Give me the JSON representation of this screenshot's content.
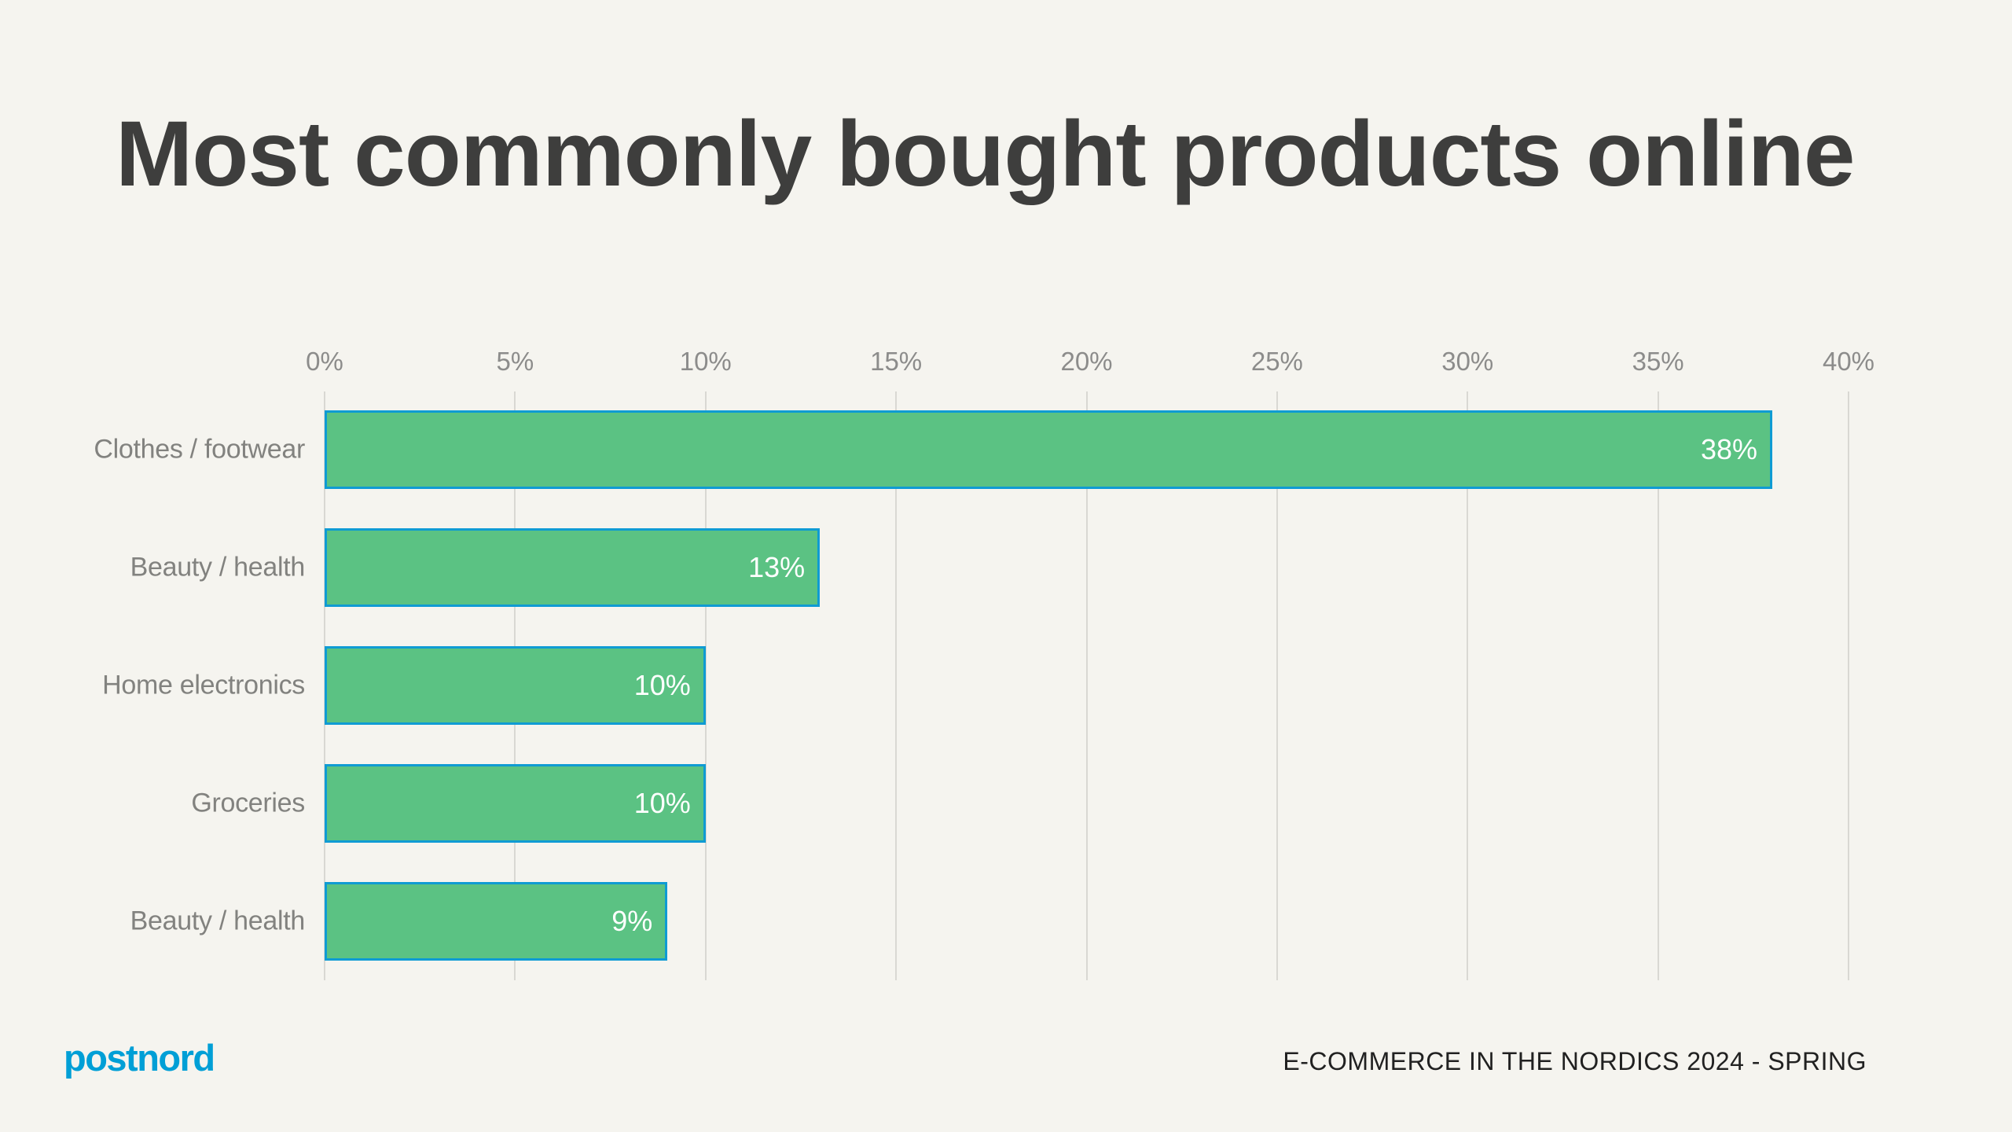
{
  "title": "Most commonly bought products online",
  "footer": {
    "logo_text": "postnord",
    "caption": "E-COMMERCE IN THE NORDICS 2024 - SPRING"
  },
  "colors": {
    "background": "#F5F4EF",
    "title_text": "#3E3E3D",
    "bar_fill": "#5BC283",
    "bar_border": "#0F9BD3",
    "value_text": "#FFFFFF",
    "axis_text": "#8C8C8B",
    "category_text": "#82827F",
    "gridline": "#D9D8D3",
    "logo_blue": "#009FD6",
    "caption_text": "#212121"
  },
  "chart_data": {
    "type": "bar",
    "orientation": "horizontal",
    "title": "Most commonly bought products online",
    "categories": [
      "Clothes / footwear",
      "Beauty / health",
      "Home electronics",
      "Groceries",
      "Beauty / health"
    ],
    "values": [
      38,
      13,
      10,
      10,
      9
    ],
    "value_labels": [
      "38%",
      "13%",
      "10%",
      "10%",
      "9%"
    ],
    "x_ticks": [
      "0%",
      "5%",
      "10%",
      "15%",
      "20%",
      "25%",
      "30%",
      "35%",
      "40%"
    ],
    "xlabel": "",
    "ylabel": "",
    "xlim": [
      0,
      40
    ],
    "grid": true,
    "legend": false,
    "value_label_position": "inside-end"
  }
}
